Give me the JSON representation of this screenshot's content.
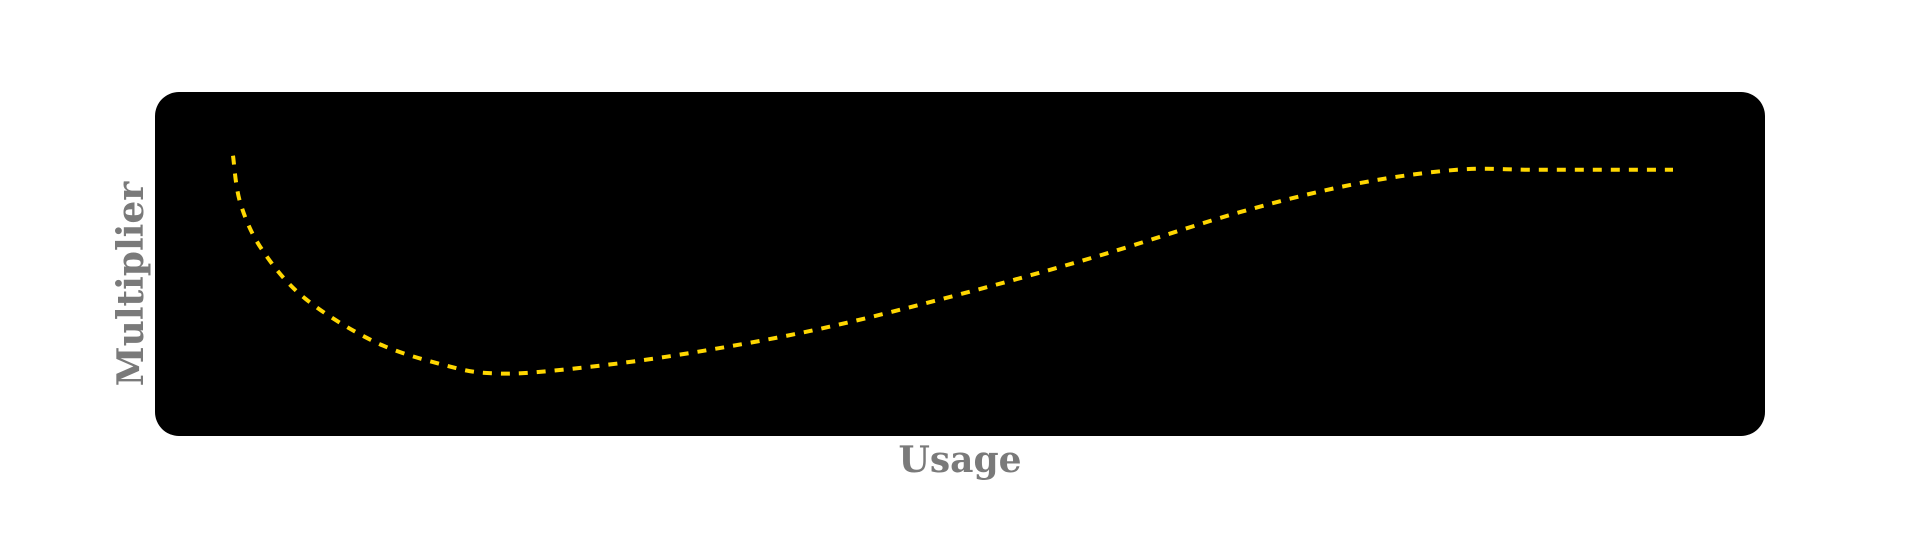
{
  "chart_data": {
    "type": "line",
    "title": "",
    "xlabel": "Usage",
    "ylabel": "Multiplier",
    "ticks_visible": false,
    "grid": false,
    "legend": "none",
    "xlim": [
      0,
      1
    ],
    "ylim": [
      0,
      1
    ],
    "series": [
      {
        "style": "dashed",
        "color": "#FFD700",
        "x": [
          0.0,
          0.005,
          0.02,
          0.05,
          0.1,
          0.15,
          0.18,
          0.22,
          0.3,
          0.4,
          0.5,
          0.6,
          0.7,
          0.78,
          0.85,
          0.9,
          0.95,
          1.0
        ],
        "y": [
          0.95,
          0.75,
          0.55,
          0.34,
          0.15,
          0.05,
          0.02,
          0.03,
          0.09,
          0.2,
          0.35,
          0.52,
          0.71,
          0.83,
          0.89,
          0.89,
          0.89,
          0.89
        ]
      }
    ]
  },
  "colors": {
    "background": "#ffffff",
    "plot_area": "#000000",
    "line": "#FFD700",
    "label": "#7a7a7a"
  }
}
